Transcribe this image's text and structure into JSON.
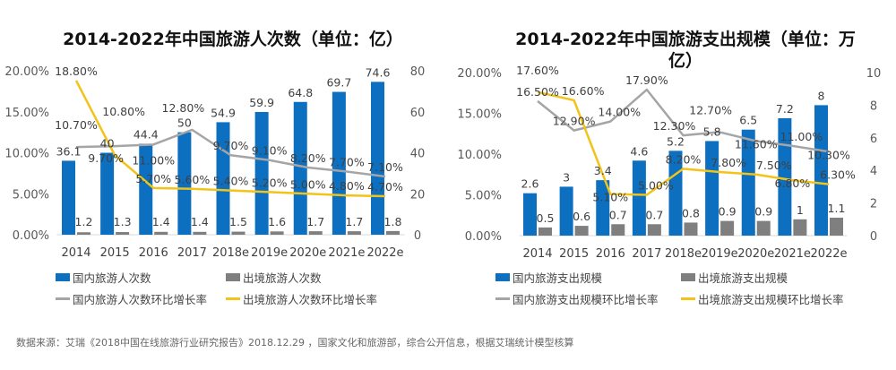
{
  "chart_data": [
    {
      "type": "bar",
      "title": "2014-2022年中国旅游人次数（单位：亿）",
      "categories": [
        "2014",
        "2015",
        "2016",
        "2017",
        "2018e",
        "2019e",
        "2020e",
        "2021e",
        "2022e"
      ],
      "y_left": {
        "range": [
          0,
          20
        ],
        "ticks": [
          "0.00%",
          "5.00%",
          "10.00%",
          "15.00%",
          "20.00%"
        ]
      },
      "y_right": {
        "range": [
          0,
          80
        ],
        "ticks": [
          "0",
          "20",
          "40",
          "60",
          "80"
        ]
      },
      "series": [
        {
          "name": "国内旅游人次数",
          "kind": "bar",
          "axis": "right",
          "color": "#0d6fc0",
          "values": [
            36.1,
            40,
            44.4,
            50,
            54.9,
            59.9,
            64.8,
            69.7,
            74.6
          ],
          "labels": [
            "36.1",
            "40",
            "44.4",
            "50",
            "54.9",
            "59.9",
            "64.8",
            "69.7",
            "74.6"
          ]
        },
        {
          "name": "出境旅游人次数",
          "kind": "bar",
          "axis": "right",
          "color": "#7f7f7f",
          "values": [
            1.2,
            1.3,
            1.4,
            1.4,
            1.5,
            1.6,
            1.7,
            1.7,
            1.8
          ],
          "labels": [
            "1.2",
            "1.3",
            "1.4",
            "1.4",
            "1.5",
            "1.6",
            "1.7",
            "1.7",
            "1.8"
          ]
        },
        {
          "name": "国内旅游人次数环比增长率",
          "kind": "line",
          "axis": "left",
          "color": "#a5a5a5",
          "values": [
            10.7,
            10.8,
            11.0,
            12.8,
            9.7,
            9.1,
            8.2,
            7.7,
            7.1
          ],
          "labels": [
            "10.70%",
            "10.80%",
            "11.00%",
            "12.80%",
            "9.70%",
            "9.10%",
            "8.20%",
            "7.70%",
            "7.10%"
          ]
        },
        {
          "name": "出境旅游人次数环比增长率",
          "kind": "line",
          "axis": "left",
          "color": "#f2c318",
          "values": [
            18.8,
            9.7,
            5.7,
            5.6,
            5.4,
            5.2,
            5.0,
            4.8,
            4.7
          ],
          "labels": [
            "18.80%",
            "9.70%",
            "5.70%",
            "5.60%",
            "5.40%",
            "5.20%",
            "5.00%",
            "4.80%",
            "4.70%"
          ]
        }
      ],
      "legend": "bottom"
    },
    {
      "type": "bar",
      "title": "2014-2022年中国旅游支出规模（单位：万亿）",
      "categories": [
        "2014",
        "2015",
        "2016",
        "2017",
        "2018e",
        "2019e",
        "2020e",
        "2021e",
        "2022e"
      ],
      "y_left": {
        "range": [
          0,
          20
        ],
        "ticks": [
          "0.00%",
          "5.00%",
          "10.00%",
          "15.00%",
          "20.00%"
        ]
      },
      "y_right": {
        "range": [
          0,
          10
        ],
        "ticks": [
          "0",
          "2",
          "4",
          "6",
          "8",
          "10"
        ]
      },
      "series": [
        {
          "name": "国内旅游支出规模",
          "kind": "bar",
          "axis": "right",
          "color": "#0d6fc0",
          "values": [
            2.6,
            3,
            3.4,
            4.6,
            5.2,
            5.8,
            6.5,
            7.2,
            8
          ],
          "labels": [
            "2.6",
            "3",
            "3.4",
            "4.6",
            "5.2",
            "5.8",
            "6.5",
            "7.2",
            "8"
          ]
        },
        {
          "name": "出境旅游支出规模",
          "kind": "bar",
          "axis": "right",
          "color": "#7f7f7f",
          "values": [
            0.5,
            0.6,
            0.7,
            0.7,
            0.8,
            0.9,
            0.9,
            1,
            1.1
          ],
          "labels": [
            "0.5",
            "0.6",
            "0.7",
            "0.7",
            "0.8",
            "0.9",
            "0.9",
            "1",
            "1.1"
          ]
        },
        {
          "name": "国内旅游支出规模环比增长率",
          "kind": "line",
          "axis": "left",
          "color": "#a5a5a5",
          "values": [
            16.5,
            12.9,
            14.0,
            17.9,
            12.3,
            12.7,
            11.6,
            11.0,
            10.3
          ],
          "labels": [
            "16.50%",
            "12.90%",
            "14.00%",
            "17.90%",
            "12.30%",
            "12.70%",
            "11.60%",
            "11.00%",
            "10.30%"
          ]
        },
        {
          "name": "出境旅游支出规模环比增长率",
          "kind": "line",
          "axis": "left",
          "color": "#f2c318",
          "values": [
            17.6,
            16.6,
            5.1,
            5.0,
            8.2,
            7.8,
            7.5,
            6.8,
            6.3
          ],
          "labels": [
            "17.60%",
            "16.60%",
            "5.10%",
            "5.00%",
            "8.20%",
            "7.80%",
            "7.50%",
            "6.80%",
            "6.30%"
          ]
        }
      ],
      "legend": "bottom"
    }
  ],
  "titles": {
    "left_line1": "2014-2022年中国旅游人次数（单位：亿）",
    "right_line1": "2014-2022年中国旅游支出规模（单位：万",
    "right_line2": "亿）"
  },
  "source": "数据来源：艾瑞《2018中国在线旅游行业研究报告》2018.12.29 ，国家文化和旅游部，综合公开信息，根据艾瑞统计模型核算"
}
